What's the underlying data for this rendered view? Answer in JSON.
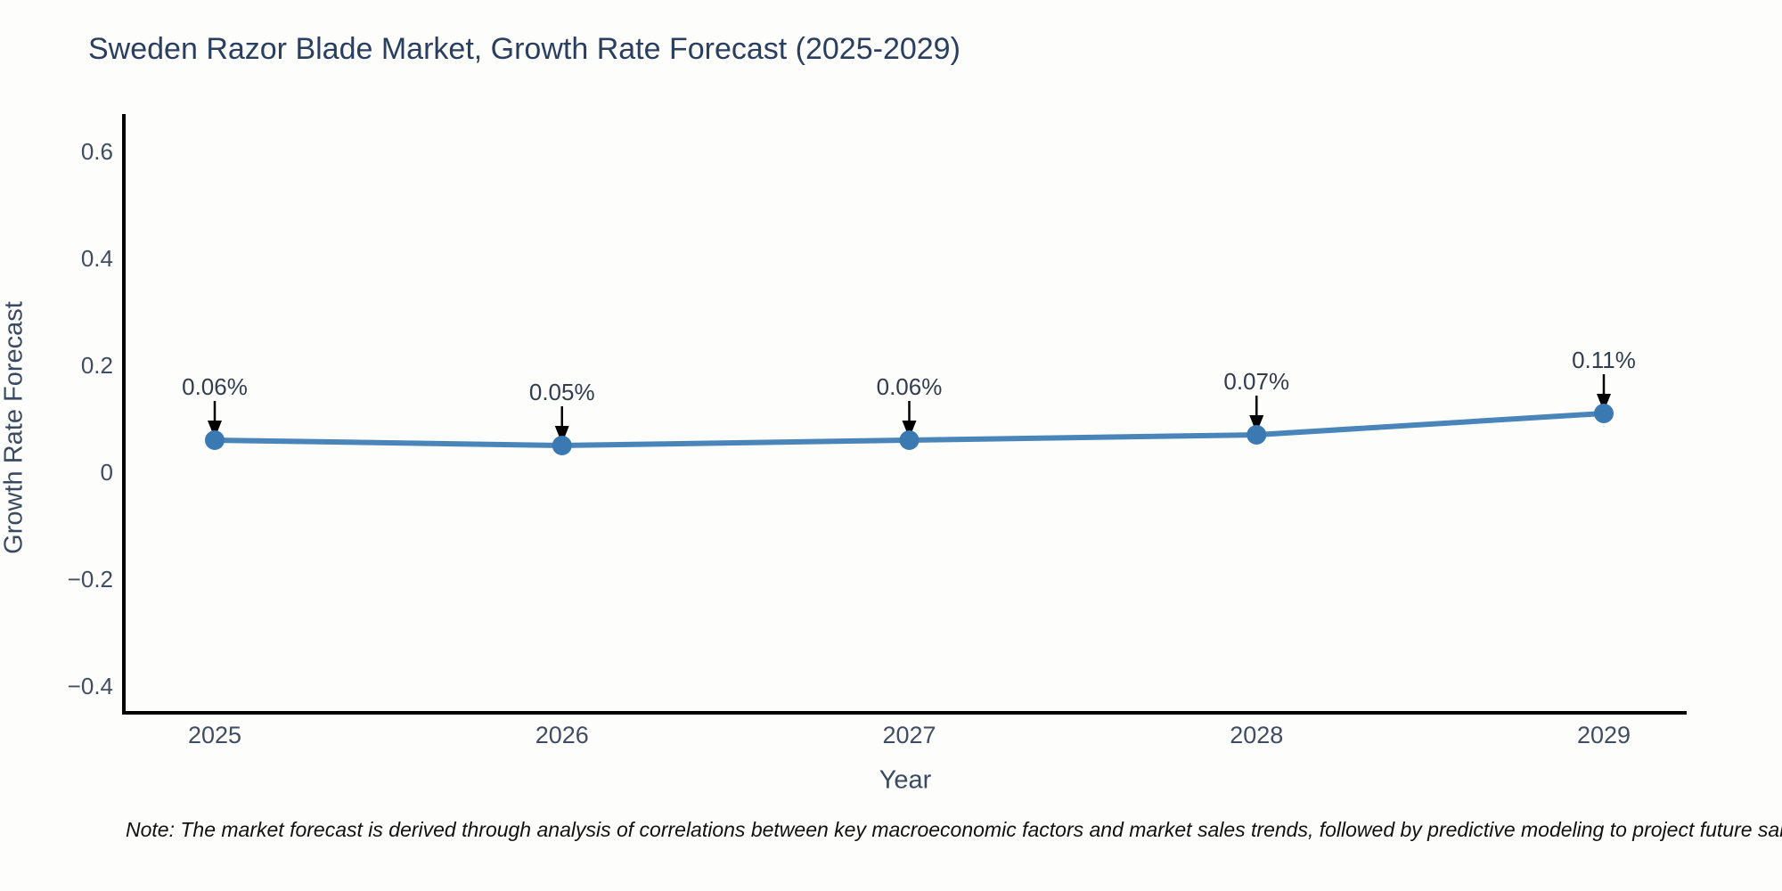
{
  "note": "Note: The market forecast is derived through analysis of correlations between key macroeconomic factors and market sales trends, followed by predictive modeling to project future sales.",
  "chart_data": {
    "type": "line",
    "title": "Sweden Razor Blade Market, Growth Rate Forecast (2025-2029)",
    "x": [
      "2025",
      "2026",
      "2027",
      "2028",
      "2029"
    ],
    "series": [
      {
        "name": "Growth Rate Forecast",
        "values": [
          0.06,
          0.05,
          0.06,
          0.07,
          0.11
        ]
      }
    ],
    "point_labels": [
      "0.06%",
      "0.05%",
      "0.06%",
      "0.07%",
      "0.11%"
    ],
    "xlabel": "Year",
    "ylabel": "Growth Rate Forecast",
    "y_tick_labels": [
      "0.6",
      "0.4",
      "0.2",
      "0",
      "−0.2",
      "−0.4"
    ],
    "y_tick_values": [
      0.6,
      0.4,
      0.2,
      0,
      -0.2,
      -0.4
    ],
    "ylim": [
      -0.45,
      0.67
    ],
    "grid": false,
    "legend": "none",
    "colors": {
      "line": "#4a85ba",
      "marker": "#3b79b3",
      "axis": "#000000",
      "title_text": "#2a3f5f",
      "axis_title_text": "#3b4a63",
      "tick_text": "#3f4d63",
      "annotation_text": "#313d4f",
      "arrow": "#000000",
      "background": "#fdfdfb"
    }
  }
}
